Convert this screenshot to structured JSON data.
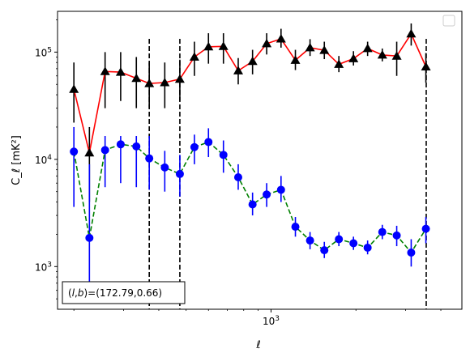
{
  "chart_data": {
    "type": "scatter",
    "title": "",
    "xlabel": "ℓ",
    "ylabel": "C_ℓ [mK²]",
    "xscale": "log",
    "yscale": "log",
    "xlim": [
      175,
      4750
    ],
    "ylim": [
      400,
      240000
    ],
    "grid": false,
    "legend_position": "top-right",
    "x_ticks": [
      {
        "value": 1000,
        "base": "10",
        "exp": "3"
      }
    ],
    "y_ticks": [
      {
        "value": 1000,
        "base": "10",
        "exp": "3"
      },
      {
        "value": 10000,
        "base": "10",
        "exp": "4"
      },
      {
        "value": 100000,
        "base": "10",
        "exp": "5"
      }
    ],
    "annotation": "(l,b)=(172.79,0.66)",
    "vlines": [
      370,
      475,
      3550
    ],
    "series": [
      {
        "color": "#ff0000",
        "line_style": "solid",
        "marker": "triangle",
        "marker_color": "#000000",
        "errorbar_color": "#000000",
        "points": [
          {
            "x": 200,
            "y": 45000,
            "lo": 22000,
            "hi": 80000
          },
          {
            "x": 227,
            "y": 11500,
            "lo": 4000,
            "hi": 20000
          },
          {
            "x": 258,
            "y": 66000,
            "lo": 30000,
            "hi": 100000
          },
          {
            "x": 293,
            "y": 65000,
            "lo": 35000,
            "hi": 100000
          },
          {
            "x": 333,
            "y": 57000,
            "lo": 30000,
            "hi": 90000
          },
          {
            "x": 370,
            "y": 51000,
            "lo": 30000,
            "hi": 80000
          },
          {
            "x": 420,
            "y": 52000,
            "lo": 30000,
            "hi": 80000
          },
          {
            "x": 475,
            "y": 56000,
            "lo": 35000,
            "hi": 85000
          },
          {
            "x": 535,
            "y": 90000,
            "lo": 60000,
            "hi": 125000
          },
          {
            "x": 600,
            "y": 112000,
            "lo": 78000,
            "hi": 150000
          },
          {
            "x": 678,
            "y": 113000,
            "lo": 78000,
            "hi": 150000
          },
          {
            "x": 765,
            "y": 67000,
            "lo": 50000,
            "hi": 88000
          },
          {
            "x": 860,
            "y": 82000,
            "lo": 62000,
            "hi": 105000
          },
          {
            "x": 965,
            "y": 120000,
            "lo": 95000,
            "hi": 150000
          },
          {
            "x": 1085,
            "y": 133000,
            "lo": 110000,
            "hi": 165000
          },
          {
            "x": 1220,
            "y": 84000,
            "lo": 68000,
            "hi": 105000
          },
          {
            "x": 1375,
            "y": 110000,
            "lo": 92000,
            "hi": 132000
          },
          {
            "x": 1545,
            "y": 104000,
            "lo": 86000,
            "hi": 125000
          },
          {
            "x": 1740,
            "y": 77000,
            "lo": 65000,
            "hi": 92000
          },
          {
            "x": 1960,
            "y": 87000,
            "lo": 75000,
            "hi": 102000
          },
          {
            "x": 2200,
            "y": 108000,
            "lo": 92000,
            "hi": 125000
          },
          {
            "x": 2480,
            "y": 94000,
            "lo": 82000,
            "hi": 108000
          },
          {
            "x": 2790,
            "y": 92000,
            "lo": 60000,
            "hi": 125000
          },
          {
            "x": 3140,
            "y": 148000,
            "lo": 115000,
            "hi": 185000
          },
          {
            "x": 3540,
            "y": 73000,
            "lo": 52000,
            "hi": 98000
          }
        ]
      },
      {
        "color": "#008000",
        "line_style": "dashed",
        "marker": "circle",
        "marker_color": "#0000ff",
        "errorbar_color": "#0000ff",
        "points": [
          {
            "x": 200,
            "y": 11800,
            "lo": 3600,
            "hi": 20000
          },
          {
            "x": 227,
            "y": 1850,
            "lo": 600,
            "hi": 9000
          },
          {
            "x": 258,
            "y": 12200,
            "lo": 5500,
            "hi": 16500
          },
          {
            "x": 293,
            "y": 13800,
            "lo": 6000,
            "hi": 16500
          },
          {
            "x": 333,
            "y": 13200,
            "lo": 5500,
            "hi": 16500
          },
          {
            "x": 370,
            "y": 10200,
            "lo": 5200,
            "hi": 16500
          },
          {
            "x": 420,
            "y": 8400,
            "lo": 5000,
            "hi": 12000
          },
          {
            "x": 475,
            "y": 7300,
            "lo": 4500,
            "hi": 11000
          },
          {
            "x": 535,
            "y": 13000,
            "lo": 9000,
            "hi": 17000
          },
          {
            "x": 600,
            "y": 14500,
            "lo": 10500,
            "hi": 19500
          },
          {
            "x": 678,
            "y": 11000,
            "lo": 7500,
            "hi": 15000
          },
          {
            "x": 765,
            "y": 6800,
            "lo": 5200,
            "hi": 9000
          },
          {
            "x": 860,
            "y": 3800,
            "lo": 3000,
            "hi": 4900
          },
          {
            "x": 965,
            "y": 4700,
            "lo": 3600,
            "hi": 6000
          },
          {
            "x": 1085,
            "y": 5200,
            "lo": 4000,
            "hi": 7000
          },
          {
            "x": 1220,
            "y": 2350,
            "lo": 1900,
            "hi": 2900
          },
          {
            "x": 1375,
            "y": 1750,
            "lo": 1450,
            "hi": 2100
          },
          {
            "x": 1545,
            "y": 1420,
            "lo": 1200,
            "hi": 1700
          },
          {
            "x": 1740,
            "y": 1800,
            "lo": 1550,
            "hi": 2100
          },
          {
            "x": 1960,
            "y": 1650,
            "lo": 1430,
            "hi": 1900
          },
          {
            "x": 2200,
            "y": 1500,
            "lo": 1300,
            "hi": 1750
          },
          {
            "x": 2480,
            "y": 2100,
            "lo": 1800,
            "hi": 2450
          },
          {
            "x": 2790,
            "y": 1950,
            "lo": 1550,
            "hi": 2400
          },
          {
            "x": 3140,
            "y": 1350,
            "lo": 1000,
            "hi": 1800
          },
          {
            "x": 3540,
            "y": 2250,
            "lo": 1650,
            "hi": 2900
          }
        ]
      }
    ]
  }
}
